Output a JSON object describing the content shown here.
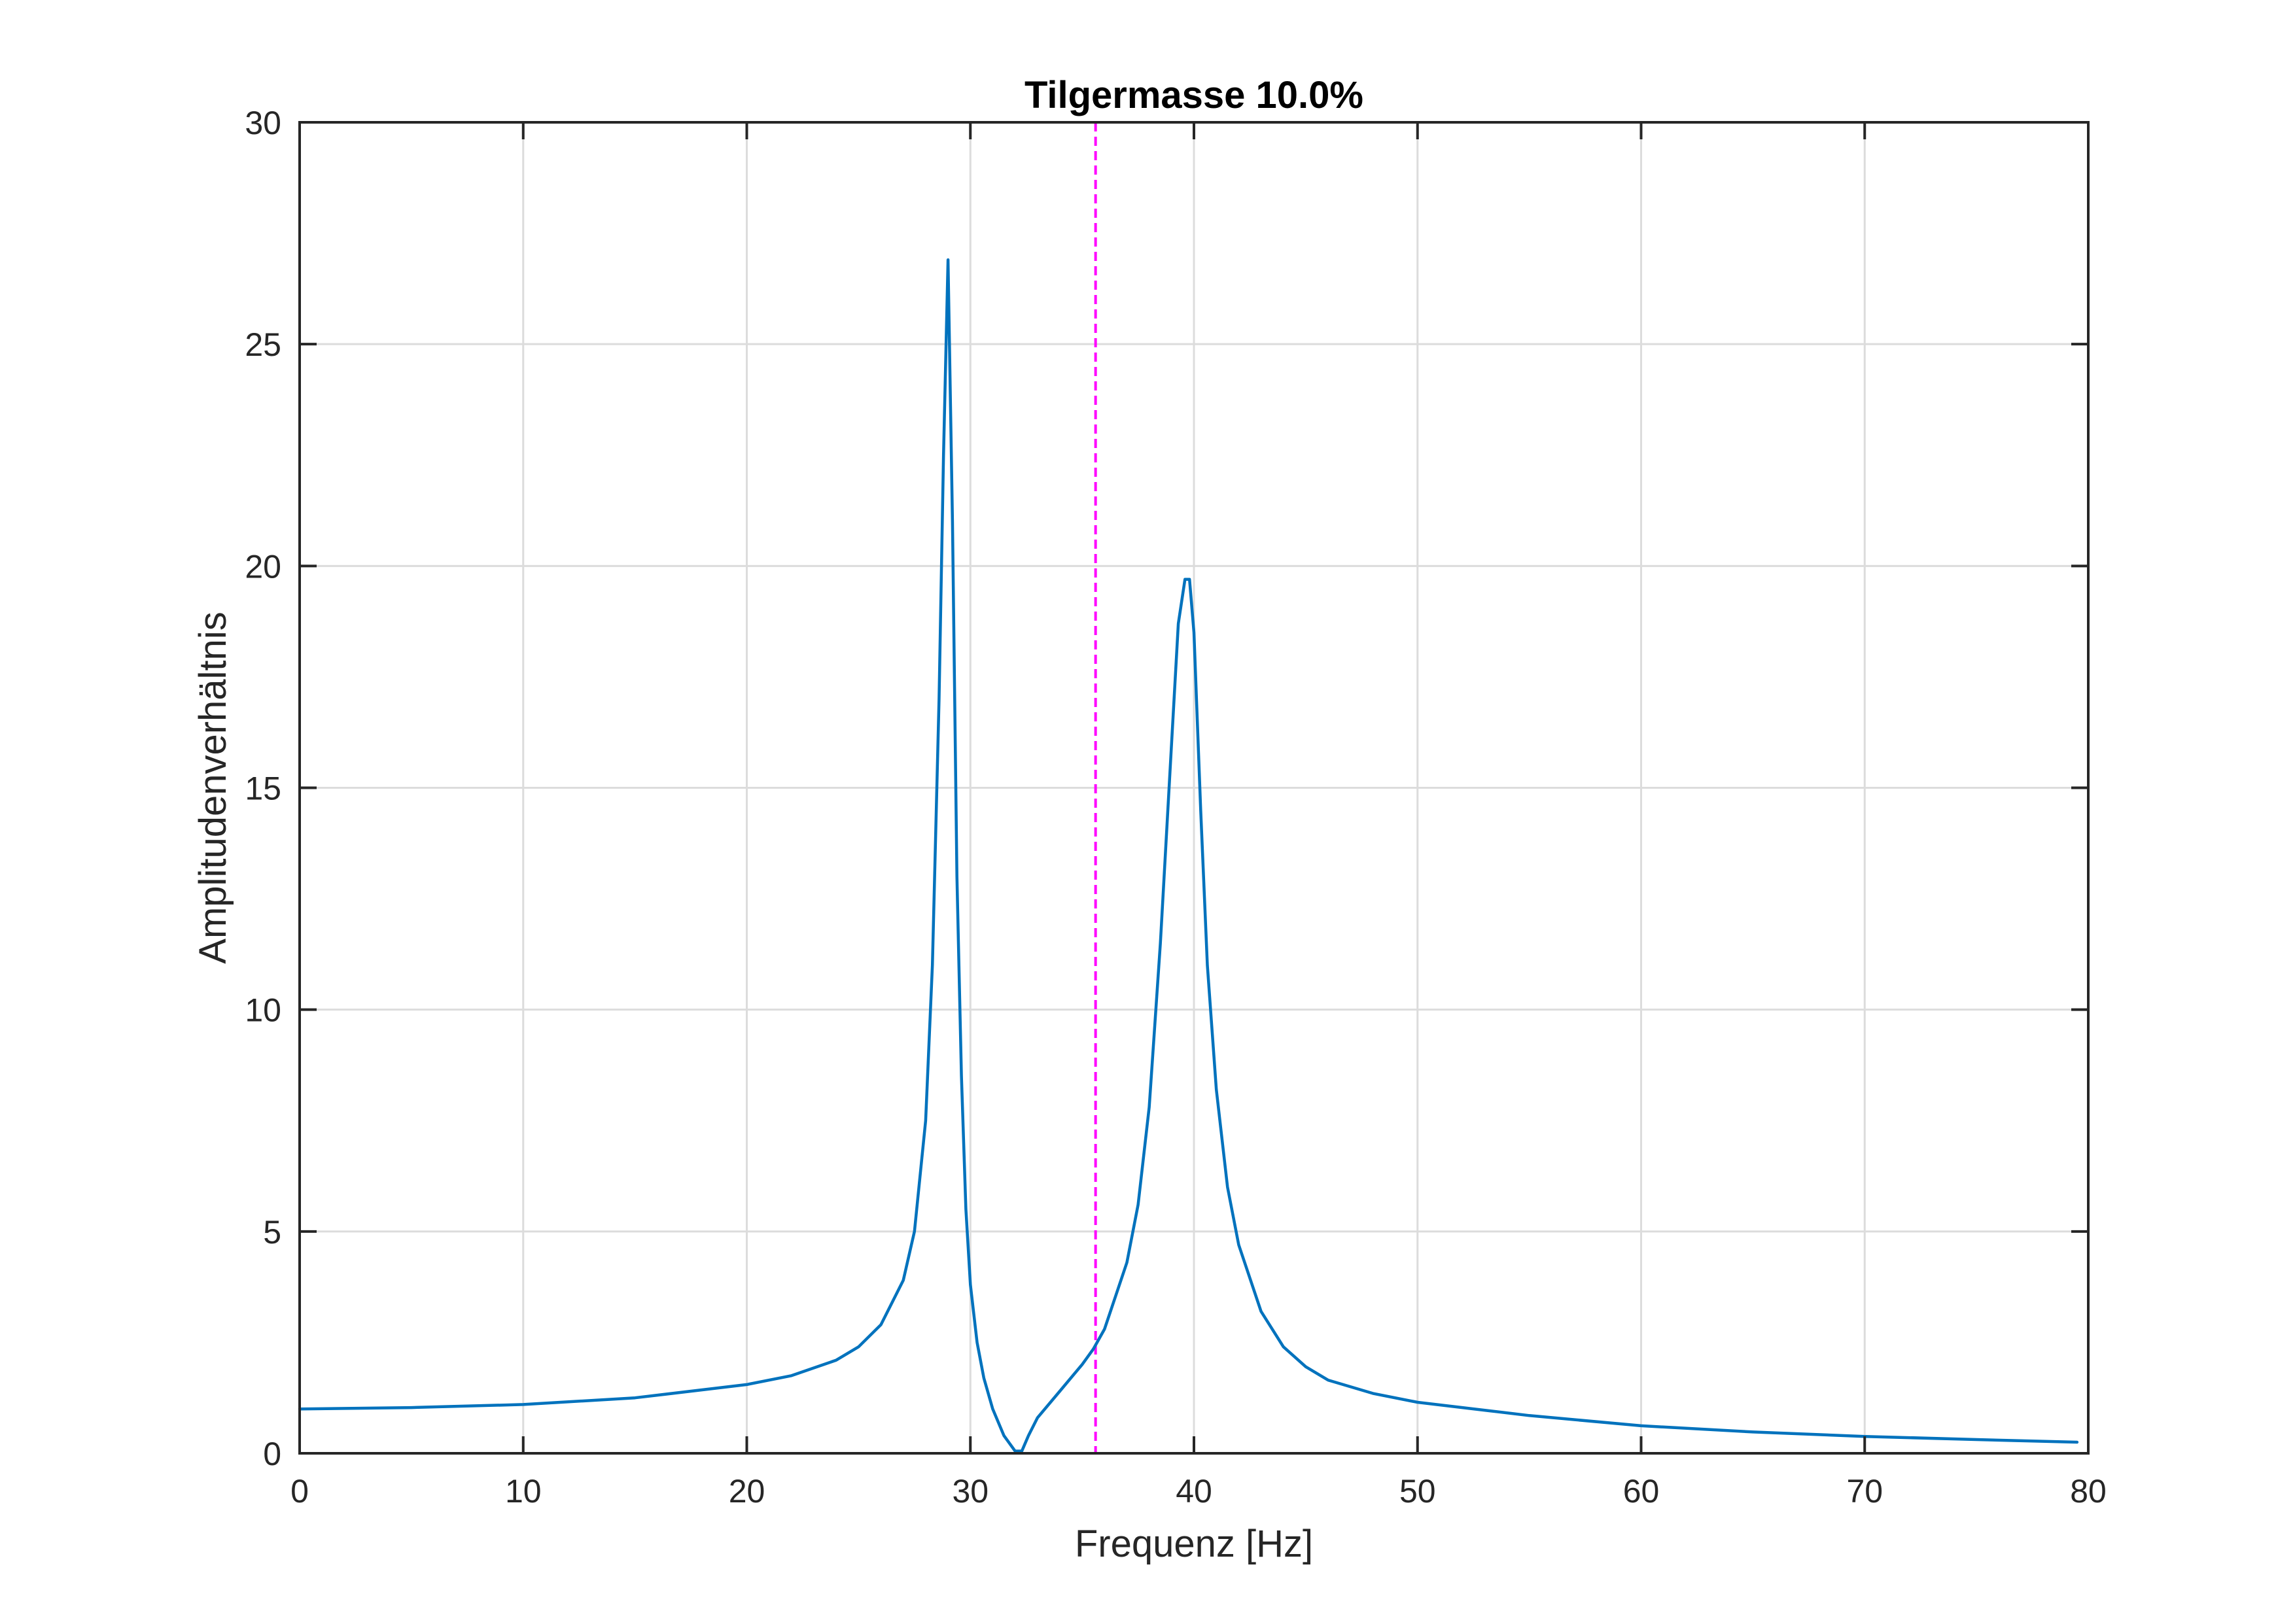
{
  "chart_data": {
    "type": "line",
    "title": "Tilgermasse 10.0%",
    "xlabel": "Frequenz [Hz]",
    "ylabel": "Amplitudenverhältnis",
    "xlim": [
      0,
      80
    ],
    "ylim": [
      0,
      30
    ],
    "xticks": [
      0,
      10,
      20,
      30,
      40,
      50,
      60,
      70,
      80
    ],
    "yticks": [
      0,
      5,
      10,
      15,
      20,
      25,
      30
    ],
    "grid": true,
    "box": true,
    "series": [
      {
        "color": "#0072bd",
        "x": [
          0,
          5,
          10,
          15,
          20,
          22,
          24,
          25,
          26,
          27,
          27.5,
          28,
          28.3,
          28.6,
          28.8,
          29.0,
          29.2,
          29.4,
          29.6,
          29.8,
          30.0,
          30.3,
          30.6,
          31.0,
          31.5,
          32.0,
          32.3,
          32.6,
          33.0,
          34.0,
          35.0,
          35.5,
          36.0,
          37.0,
          37.5,
          38.0,
          38.5,
          39.0,
          39.3,
          39.6,
          39.8,
          40.0,
          40.3,
          40.6,
          41.0,
          41.5,
          42.0,
          43.0,
          44.0,
          45.0,
          46.0,
          48.0,
          50.0,
          55.0,
          60.0,
          65.0,
          70.0,
          75.0,
          79.5
        ],
        "y": [
          1.0,
          1.03,
          1.1,
          1.25,
          1.55,
          1.75,
          2.1,
          2.4,
          2.9,
          3.9,
          5.0,
          7.5,
          11.0,
          17.0,
          22.5,
          26.9,
          21.0,
          13.0,
          8.5,
          5.5,
          3.8,
          2.5,
          1.7,
          1.0,
          0.4,
          0.05,
          0.05,
          0.4,
          0.8,
          1.4,
          2.0,
          2.35,
          2.8,
          4.3,
          5.6,
          7.8,
          11.5,
          16.0,
          18.7,
          19.7,
          19.7,
          18.5,
          14.5,
          11.0,
          8.2,
          6.0,
          4.7,
          3.2,
          2.4,
          1.95,
          1.65,
          1.35,
          1.15,
          0.85,
          0.62,
          0.48,
          0.38,
          0.31,
          0.25
        ]
      }
    ],
    "vlines": [
      {
        "x": 35.6,
        "color": "#ff00ff",
        "style": "dashed"
      }
    ]
  }
}
